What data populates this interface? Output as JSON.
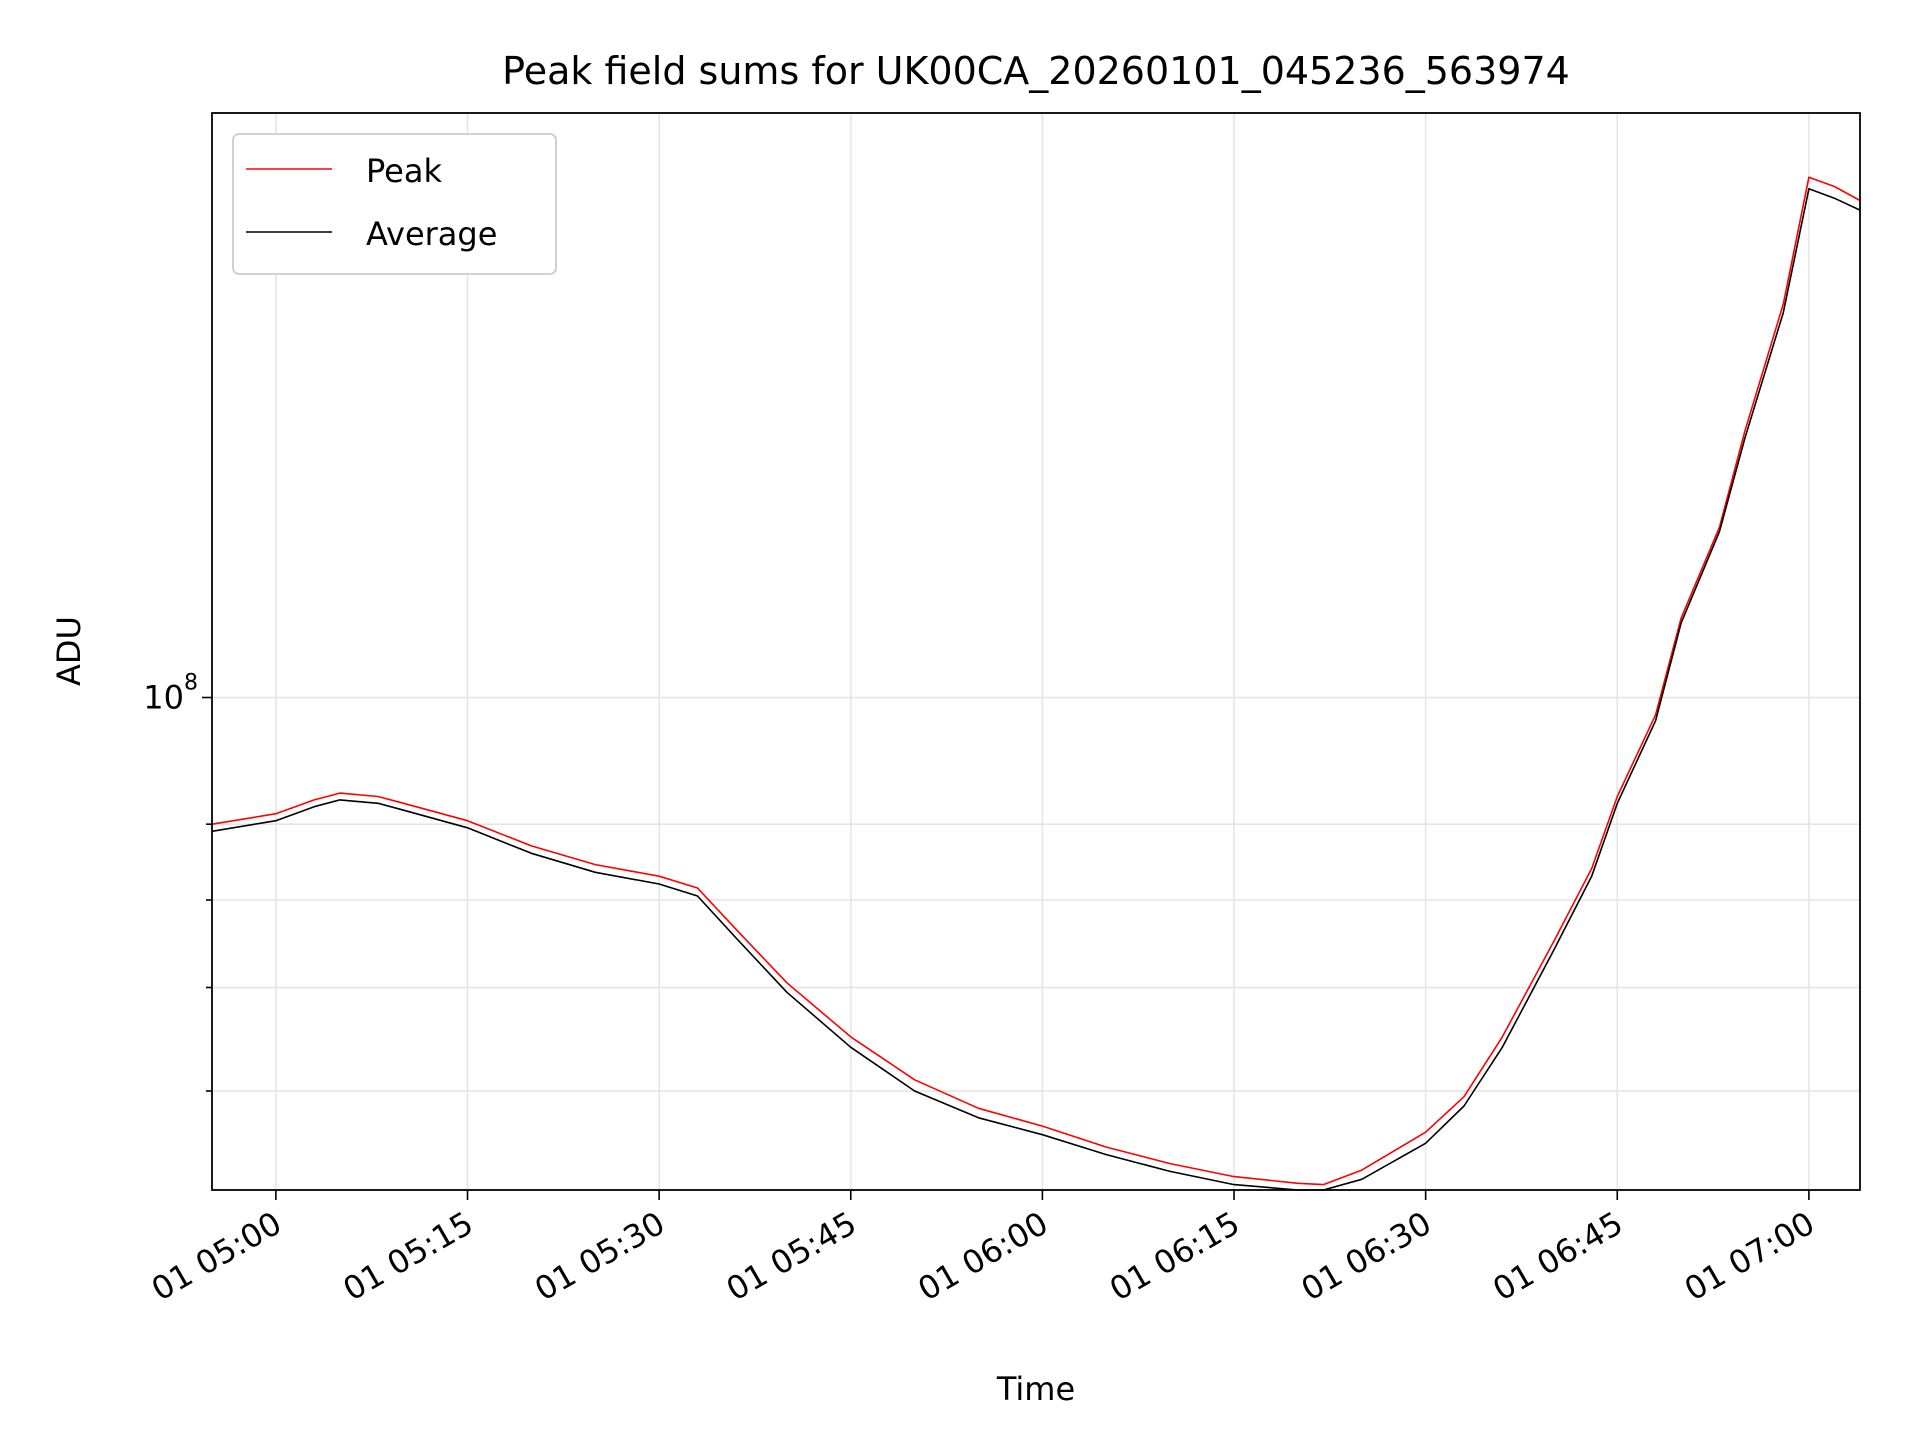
{
  "chart_data": {
    "type": "line",
    "title": "Peak field sums for UK00CA_20260101_045236_563974",
    "xlabel": "Time",
    "ylabel": "ADU",
    "y_scale": "log",
    "grid": true,
    "legend_position": "upper-left",
    "x_range": [
      "01 04:55",
      "01 07:04"
    ],
    "ylim": [
      42000000,
      280000000
    ],
    "x_ticks": [
      "01 05:00",
      "01 05:15",
      "01 05:30",
      "01 05:45",
      "01 06:00",
      "01 06:15",
      "01 06:30",
      "01 06:45",
      "01 07:00"
    ],
    "y_tick_label": {
      "base": "10",
      "exponent": "8"
    },
    "y_major_tick": 100000000,
    "y_minor_ticks": [
      50000000,
      60000000,
      70000000,
      80000000
    ],
    "x": [
      "01 04:55",
      "01 05:00",
      "01 05:03",
      "01 05:05",
      "01 05:08",
      "01 05:10",
      "01 05:15",
      "01 05:20",
      "01 05:25",
      "01 05:30",
      "01 05:33",
      "01 05:36",
      "01 05:40",
      "01 05:45",
      "01 05:50",
      "01 05:55",
      "01 06:00",
      "01 06:05",
      "01 06:10",
      "01 06:15",
      "01 06:20",
      "01 06:22",
      "01 06:25",
      "01 06:30",
      "01 06:33",
      "01 06:36",
      "01 06:40",
      "01 06:43",
      "01 06:45",
      "01 06:48",
      "01 06:50",
      "01 06:53",
      "01 06:55",
      "01 06:58",
      "01 07:00",
      "01 07:02",
      "01 07:04"
    ],
    "series": [
      {
        "name": "Peak",
        "color": "#ff0000",
        "values": [
          80000000,
          81500000,
          83500000,
          84500000,
          84000000,
          83000000,
          80500000,
          77000000,
          74500000,
          73000000,
          71500000,
          66500000,
          60500000,
          55000000,
          51000000,
          48500000,
          47000000,
          45300000,
          44000000,
          43000000,
          42500000,
          42400000,
          43500000,
          46500000,
          49500000,
          55000000,
          65000000,
          74000000,
          84000000,
          97000000,
          115000000,
          135000000,
          160000000,
          200000000,
          250000000,
          246000000,
          240000000
        ]
      },
      {
        "name": "Average",
        "color": "#000000",
        "values": [
          79000000,
          80500000,
          82500000,
          83500000,
          83000000,
          82000000,
          79500000,
          76000000,
          73500000,
          72000000,
          70500000,
          65500000,
          59500000,
          54000000,
          50000000,
          47700000,
          46300000,
          44700000,
          43400000,
          42400000,
          41900000,
          41800000,
          42800000,
          45600000,
          48700000,
          54000000,
          64000000,
          73000000,
          83000000,
          96000000,
          114000000,
          134000000,
          158000000,
          197000000,
          245000000,
          241000000,
          236000000
        ]
      }
    ]
  }
}
